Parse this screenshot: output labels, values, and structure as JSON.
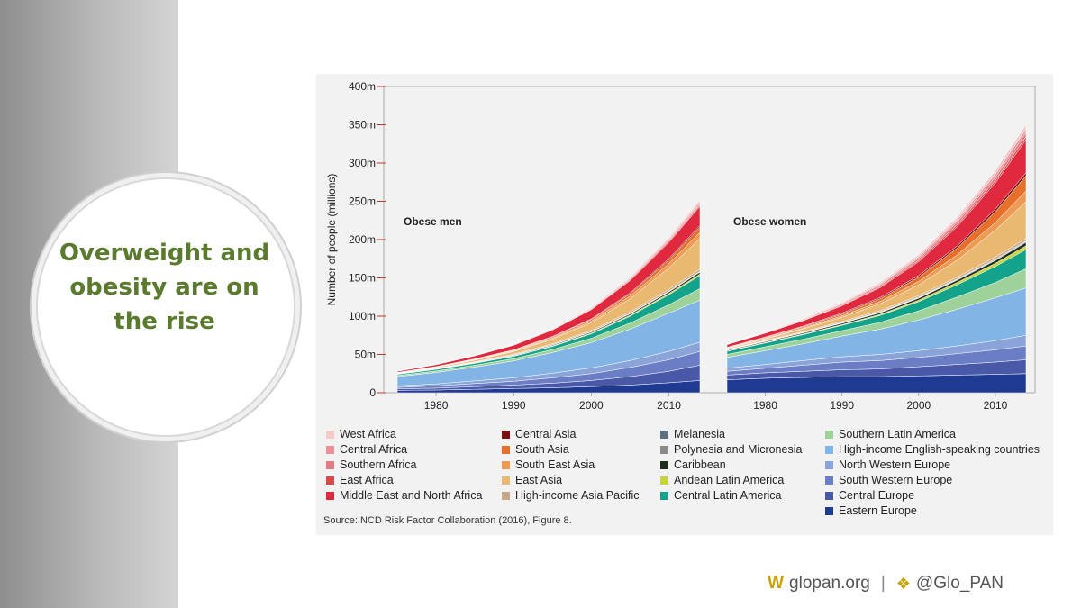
{
  "slide": {
    "headline": "Overweight and obesity are on the rise",
    "source": "Source: NCD Risk Factor Collaboration (2016), Figure 8.",
    "footer": {
      "logo": "W",
      "site": "glopan.org",
      "separator": "|",
      "handle": "@Glo_PAN"
    },
    "colors": {
      "headline": "#5a7a2e",
      "footer_accent": "#c8a200",
      "chart_background": "#f2f2f2"
    }
  },
  "chart_data": {
    "type": "area",
    "stacked": true,
    "ylabel": "Number of people (millions)",
    "ylim": [
      0,
      400
    ],
    "yticks": [
      0,
      50,
      100,
      150,
      200,
      250,
      300,
      350,
      400
    ],
    "ytick_labels": [
      "0",
      "50m",
      "100m",
      "150m",
      "200m",
      "250m",
      "300m",
      "350m",
      "400m"
    ],
    "xlim": [
      1975,
      2014
    ],
    "xticks": [
      1980,
      1990,
      2000,
      2010
    ],
    "legend_position": "bottom",
    "series": [
      {
        "name": "Eastern Europe",
        "color": "#1f3a93"
      },
      {
        "name": "Central Europe",
        "color": "#4a58a8"
      },
      {
        "name": "South Western Europe",
        "color": "#6b7dc4"
      },
      {
        "name": "North Western Europe",
        "color": "#8aa3d8"
      },
      {
        "name": "High-income English-speaking countries",
        "color": "#82b5e6"
      },
      {
        "name": "Southern Latin America",
        "color": "#9fd19a"
      },
      {
        "name": "Central Latin America",
        "color": "#13a38a"
      },
      {
        "name": "Andean Latin America",
        "color": "#c7d43c"
      },
      {
        "name": "Caribbean",
        "color": "#1e2e1e"
      },
      {
        "name": "Polynesia and Micronesia",
        "color": "#8a8a8a"
      },
      {
        "name": "Melanesia",
        "color": "#5c6e80"
      },
      {
        "name": "High-income Asia Pacific",
        "color": "#c9a88a"
      },
      {
        "name": "East Asia",
        "color": "#e9b871"
      },
      {
        "name": "South East Asia",
        "color": "#ef9a52"
      },
      {
        "name": "South Asia",
        "color": "#e66f2c"
      },
      {
        "name": "Central Asia",
        "color": "#7a1010"
      },
      {
        "name": "Middle East and North Africa",
        "color": "#e0283e"
      },
      {
        "name": "East Africa",
        "color": "#d64a4a"
      },
      {
        "name": "Southern Africa",
        "color": "#e37b84"
      },
      {
        "name": "Central Africa",
        "color": "#eb9098"
      },
      {
        "name": "West Africa",
        "color": "#f6caca"
      }
    ],
    "legend_columns": [
      [
        "West Africa",
        "Central Africa",
        "Southern Africa",
        "East Africa",
        "Middle East and North Africa"
      ],
      [
        "Central Asia",
        "South Asia",
        "South East Asia",
        "East Asia",
        "High-income Asia Pacific"
      ],
      [
        "Melanesia",
        "Polynesia and Micronesia",
        "Caribbean",
        "Andean Latin America",
        "Central Latin America"
      ],
      [
        "Southern Latin America",
        "High-income English-speaking countries",
        "North Western Europe",
        "South Western Europe",
        "Central Europe",
        "Eastern Europe"
      ]
    ],
    "panels": [
      {
        "title": "Obese men",
        "x": [
          1975,
          1980,
          1985,
          1990,
          1995,
          2000,
          2005,
          2010,
          2014
        ],
        "series_values": [
          [
            3,
            3.5,
            4.5,
            5.5,
            6.5,
            8,
            10,
            13,
            16
          ],
          [
            2,
            2.5,
            3.5,
            4.5,
            6,
            8,
            11,
            15,
            20
          ],
          [
            2,
            3,
            4,
            5,
            7,
            9,
            12,
            15,
            18
          ],
          [
            2,
            2.5,
            3.5,
            4.5,
            6,
            7.5,
            9,
            11,
            12
          ],
          [
            12,
            15,
            18,
            22,
            27,
            33,
            41,
            50,
            55
          ],
          [
            1.5,
            2,
            2.5,
            3,
            4,
            5.5,
            8,
            11,
            15
          ],
          [
            1.5,
            2,
            2.5,
            3,
            4,
            6,
            9,
            13,
            17
          ],
          [
            0.2,
            0.3,
            0.4,
            0.5,
            0.7,
            1,
            1.3,
            1.6,
            2
          ],
          [
            0.4,
            0.5,
            0.6,
            0.8,
            1,
            1.3,
            1.6,
            2,
            2.5
          ],
          [
            0.1,
            0.1,
            0.15,
            0.2,
            0.25,
            0.3,
            0.4,
            0.5,
            0.5
          ],
          [
            0.1,
            0.1,
            0.15,
            0.2,
            0.25,
            0.3,
            0.4,
            0.5,
            0.5
          ],
          [
            0.4,
            0.6,
            0.8,
            1,
            1.3,
            1.6,
            2,
            2.5,
            3
          ],
          [
            0.5,
            1,
            2,
            3.5,
            6,
            10,
            17,
            28,
            40
          ],
          [
            0.2,
            0.3,
            0.5,
            0.8,
            1.3,
            2,
            3.5,
            5.5,
            8
          ],
          [
            0.3,
            0.4,
            0.6,
            0.9,
            1.4,
            2,
            3,
            5,
            7
          ],
          [
            0.3,
            0.4,
            0.5,
            0.6,
            0.8,
            1,
            1.3,
            1.7,
            2
          ],
          [
            1.5,
            2.5,
            4,
            6,
            8.5,
            12,
            16,
            21,
            25
          ],
          [
            0.1,
            0.2,
            0.3,
            0.4,
            0.5,
            0.7,
            1,
            1.3,
            1.5
          ],
          [
            0.2,
            0.3,
            0.4,
            0.6,
            0.8,
            1,
            1.3,
            1.7,
            2
          ],
          [
            0.1,
            0.2,
            0.3,
            0.4,
            0.5,
            0.7,
            1,
            1.4,
            2
          ],
          [
            0.2,
            0.3,
            0.4,
            0.6,
            0.8,
            1.1,
            1.5,
            2,
            3
          ]
        ]
      },
      {
        "title": "Obese women",
        "x": [
          1975,
          1980,
          1985,
          1990,
          1995,
          2000,
          2005,
          2010,
          2014
        ],
        "series_values": [
          [
            17,
            19,
            20,
            21,
            21,
            22,
            23,
            24,
            25
          ],
          [
            6,
            7,
            8,
            9,
            10,
            12,
            14,
            16,
            18
          ],
          [
            5,
            6,
            8,
            10,
            11,
            12,
            14,
            16,
            18
          ],
          [
            4,
            5,
            6,
            7,
            8,
            9,
            10,
            12,
            14
          ],
          [
            14,
            18,
            22,
            27,
            33,
            40,
            48,
            56,
            62
          ],
          [
            4,
            5,
            6,
            7,
            9,
            12,
            16,
            20,
            25
          ],
          [
            4,
            5,
            6,
            7,
            9,
            12,
            16,
            21,
            25
          ],
          [
            0.4,
            0.6,
            0.8,
            1,
            1.5,
            2,
            3,
            4,
            5
          ],
          [
            1,
            1.2,
            1.4,
            1.7,
            2,
            2.5,
            3,
            3.7,
            4.5
          ],
          [
            0.3,
            0.3,
            0.4,
            0.5,
            0.6,
            0.7,
            0.8,
            1,
            1
          ],
          [
            0.2,
            0.3,
            0.4,
            0.5,
            0.6,
            0.7,
            0.8,
            1,
            1
          ],
          [
            0.6,
            0.8,
            1,
            1.3,
            1.6,
            2,
            2.3,
            2.7,
            3
          ],
          [
            1,
            2,
            3.5,
            5.5,
            9,
            14,
            22,
            35,
            48
          ],
          [
            0.5,
            0.8,
            1.2,
            2,
            3,
            4.5,
            7,
            10,
            14
          ],
          [
            0.7,
            1,
            1.5,
            2.2,
            3.5,
            5.5,
            9,
            14,
            20
          ],
          [
            0.6,
            0.8,
            1,
            1.3,
            1.7,
            2.2,
            2.8,
            3.5,
            4
          ],
          [
            3.5,
            5,
            7,
            9.5,
            13,
            18,
            25,
            34,
            43
          ],
          [
            0.3,
            0.5,
            0.7,
            1,
            1.3,
            1.8,
            2.5,
            3.3,
            4
          ],
          [
            0.5,
            0.8,
            1.1,
            1.5,
            2,
            2.7,
            3.5,
            4.5,
            5.5
          ],
          [
            0.3,
            0.5,
            0.7,
            1,
            1.4,
            1.9,
            2.6,
            3.6,
            4.5
          ],
          [
            0.5,
            0.8,
            1.1,
            1.5,
            2,
            2.8,
            3.8,
            5,
            6
          ]
        ]
      }
    ]
  }
}
